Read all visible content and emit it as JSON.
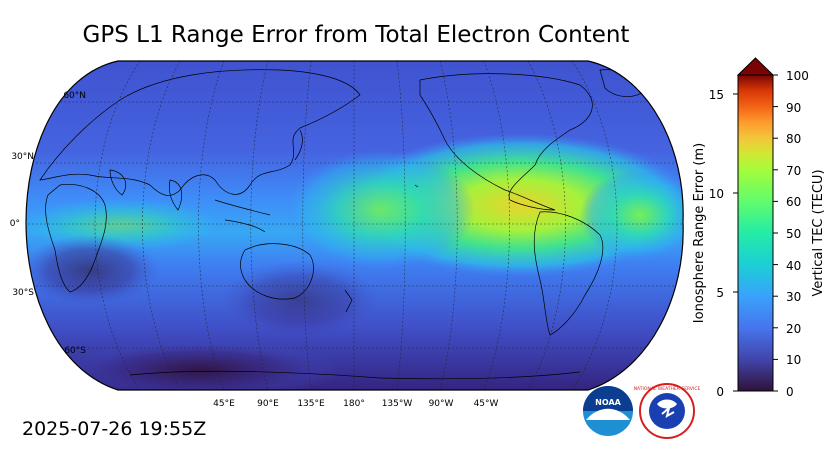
{
  "title": "GPS L1 Range Error from Total Electron Content",
  "timestamp": "2025-07-26 19:55Z",
  "map": {
    "lat_labels": [
      "60°N",
      "30°N",
      "0°",
      "30°S",
      "60°S"
    ],
    "lon_labels": [
      "45°E",
      "90°E",
      "135°E",
      "180°",
      "135°W",
      "90°W",
      "45°W"
    ],
    "projection": "robinson-like, centered 180°",
    "grid": true,
    "colors": {
      "low": "#30123b",
      "mid": "#3e8afe",
      "cyan": "#28d4c4",
      "green": "#7bf049",
      "yellow": "#d0e030",
      "ocean_bg": "#4a6ae0"
    }
  },
  "colorbar": {
    "left_label": "Ionosphere Range Error (m)",
    "right_label": "Vertical TEC (TECU)",
    "left_ticks": [
      "0",
      "5",
      "10",
      "15"
    ],
    "right_ticks": [
      "0",
      "10",
      "20",
      "30",
      "40",
      "50",
      "60",
      "70",
      "80",
      "90",
      "100"
    ],
    "colormap": "turbo",
    "extend": "max"
  },
  "logos": {
    "noaa_text": "NOAA",
    "nws_text": "NATIONAL WEATHER SERVICE"
  }
}
